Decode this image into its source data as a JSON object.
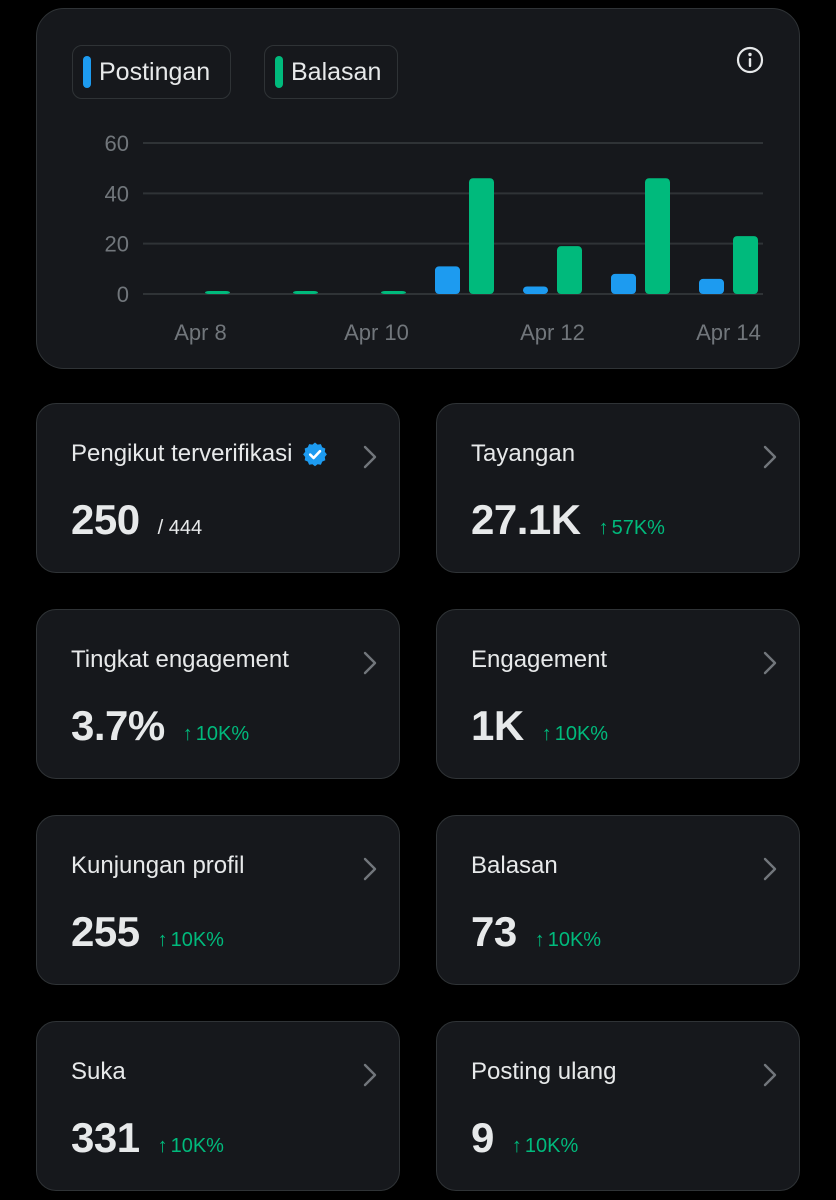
{
  "legend": [
    {
      "label": "Postingan",
      "color": "#1d9bf0"
    },
    {
      "label": "Balasan",
      "color": "#00ba7c"
    }
  ],
  "chart_data": {
    "type": "bar",
    "categories": [
      "Apr 8",
      "Apr 9",
      "Apr 10",
      "Apr 11",
      "Apr 12",
      "Apr 13",
      "Apr 14"
    ],
    "x_tick_labels": [
      "Apr 8",
      "Apr 10",
      "Apr 12",
      "Apr 14"
    ],
    "series": [
      {
        "name": "Postingan",
        "color": "#1d9bf0",
        "values": [
          0,
          0,
          0,
          11,
          3,
          8,
          6
        ]
      },
      {
        "name": "Balasan",
        "color": "#00ba7c",
        "values": [
          1,
          1,
          1,
          46,
          19,
          46,
          23
        ]
      }
    ],
    "y_ticks": [
      0,
      20,
      40,
      60
    ],
    "ylim": [
      0,
      60
    ],
    "grid": true,
    "legend_position": "top-left"
  },
  "stats": [
    {
      "title": "Pengikut terverifikasi",
      "value": "250",
      "total": "/ 444",
      "verified": true
    },
    {
      "title": "Tayangan",
      "value": "27.1K",
      "change": "57K%"
    },
    {
      "title": "Tingkat engagement",
      "value": "3.7%",
      "change": "10K%"
    },
    {
      "title": "Engagement",
      "value": "1K",
      "change": "10K%"
    },
    {
      "title": "Kunjungan profil",
      "value": "255",
      "change": "10K%"
    },
    {
      "title": "Balasan",
      "value": "73",
      "change": "10K%"
    },
    {
      "title": "Suka",
      "value": "331",
      "change": "10K%"
    },
    {
      "title": "Posting ulang",
      "value": "9",
      "change": "10K%"
    }
  ],
  "icons": {
    "info": "info-icon",
    "verified": "verified-badge-icon",
    "chevron": "chevron-right-icon",
    "arrow": "arrow-up-icon"
  }
}
